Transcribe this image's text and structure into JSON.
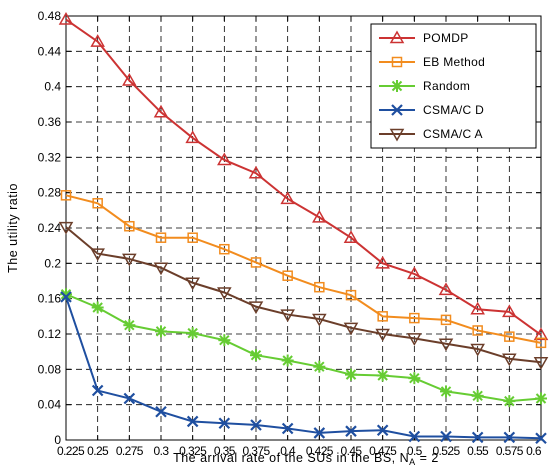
{
  "chart_data": {
    "type": "line",
    "xlabel_main": "The arrival rate of the SUs in the BS, N",
    "xlabel_sub": "A",
    "xlabel_tail": " = 2",
    "ylabel": "The utility ratio",
    "xlim": [
      0.225,
      0.6
    ],
    "ylim": [
      0,
      0.48
    ],
    "x": [
      0.225,
      0.25,
      0.275,
      0.3,
      0.325,
      0.35,
      0.375,
      0.4,
      0.425,
      0.45,
      0.475,
      0.5,
      0.525,
      0.55,
      0.575,
      0.6
    ],
    "xtick_labels": [
      "0.225",
      "0.25",
      "0.275",
      "0.3",
      "0.325",
      "0.35",
      "0.375",
      "0.4",
      "0.425",
      "0.45",
      "0.475",
      "0.5",
      "0.525",
      "0.55",
      "0.575",
      "0.6"
    ],
    "yticks": [
      0,
      0.04,
      0.08,
      0.12,
      0.16,
      0.2,
      0.24,
      0.28,
      0.32,
      0.36,
      0.4,
      0.44,
      0.48
    ],
    "ytick_labels": [
      "0",
      "0.04",
      "0.08",
      "0.12",
      "0.16",
      "0.2",
      "0.24",
      "0.28",
      "0.32",
      "0.36",
      "0.4",
      "0.44",
      "0.48"
    ],
    "grid": true,
    "legend_position": "top-right",
    "series": [
      {
        "name": "POMDP",
        "marker": "triangle-up",
        "color": "#cc3333",
        "values": [
          0.476,
          0.451,
          0.407,
          0.371,
          0.342,
          0.317,
          0.302,
          0.273,
          0.252,
          0.229,
          0.2,
          0.188,
          0.17,
          0.148,
          0.145,
          0.119
        ]
      },
      {
        "name": "EB Method",
        "marker": "square",
        "color": "#f28c1e",
        "values": [
          0.277,
          0.268,
          0.242,
          0.229,
          0.229,
          0.216,
          0.201,
          0.186,
          0.173,
          0.164,
          0.14,
          0.138,
          0.136,
          0.124,
          0.117,
          0.11
        ]
      },
      {
        "name": "Random",
        "marker": "asterisk",
        "color": "#66cc33",
        "values": [
          0.165,
          0.15,
          0.13,
          0.123,
          0.121,
          0.113,
          0.096,
          0.09,
          0.083,
          0.074,
          0.073,
          0.07,
          0.055,
          0.05,
          0.044,
          0.047
        ]
      },
      {
        "name": "CSMA/C D",
        "marker": "x",
        "color": "#1f4fa0",
        "values": [
          0.162,
          0.056,
          0.047,
          0.032,
          0.021,
          0.019,
          0.017,
          0.013,
          0.008,
          0.01,
          0.011,
          0.004,
          0.004,
          0.003,
          0.003,
          0.002
        ]
      },
      {
        "name": "CSMA/C A",
        "marker": "triangle-down",
        "color": "#6b3e2a",
        "values": [
          0.241,
          0.211,
          0.205,
          0.195,
          0.178,
          0.167,
          0.151,
          0.142,
          0.137,
          0.127,
          0.12,
          0.115,
          0.109,
          0.103,
          0.092,
          0.088
        ]
      }
    ]
  }
}
